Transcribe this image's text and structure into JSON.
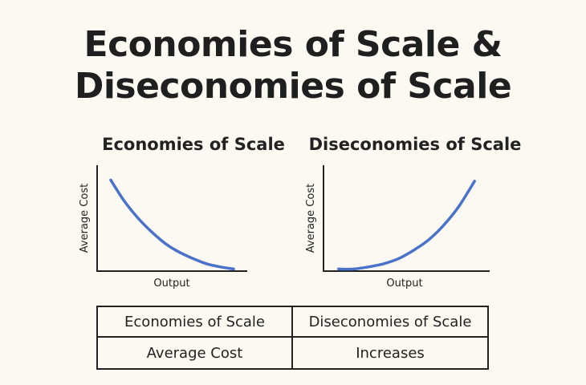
{
  "title_lines": [
    "Economies of Scale &",
    "Diseconomies of Scale"
  ],
  "accent_color": "#4a72c9",
  "chart_data": [
    {
      "type": "line",
      "title": "Economies of Scale",
      "xlabel": "Output",
      "ylabel": "Average Cost",
      "x": [
        0.1,
        0.2,
        0.3,
        0.4,
        0.5,
        0.6,
        0.7,
        0.8,
        0.9,
        1.0
      ],
      "y": [
        0.86,
        0.66,
        0.5,
        0.37,
        0.26,
        0.18,
        0.12,
        0.07,
        0.04,
        0.02
      ],
      "xlim": [
        0,
        1.1
      ],
      "ylim": [
        0,
        1
      ],
      "grid": false
    },
    {
      "type": "line",
      "title": "Diseconomies of Scale",
      "xlabel": "Output",
      "ylabel": "Average Cost",
      "x": [
        0.1,
        0.2,
        0.3,
        0.4,
        0.5,
        0.6,
        0.7,
        0.8,
        0.9,
        1.0
      ],
      "y": [
        0.02,
        0.02,
        0.04,
        0.07,
        0.12,
        0.2,
        0.3,
        0.44,
        0.62,
        0.85
      ],
      "xlim": [
        0,
        1.1
      ],
      "ylim": [
        0,
        1
      ],
      "grid": false
    }
  ],
  "table": {
    "rows": [
      [
        "Economies of Scale",
        "Diseconomies of Scale"
      ],
      [
        "Average Cost",
        "Increases"
      ]
    ]
  }
}
